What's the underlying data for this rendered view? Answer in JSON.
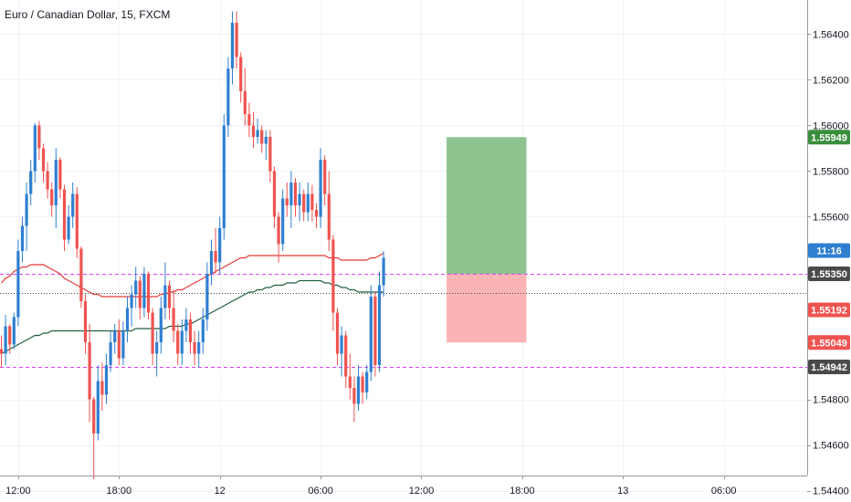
{
  "chart_data": {
    "type": "candlestick",
    "title": "Euro / Canadian Dollar, 15, FXCM",
    "colors": {
      "up": "#2f7fd1",
      "down": "#ef5350",
      "ma_red": "#e53935",
      "ma_green": "#1e5f3a",
      "dashed": "#e040fb",
      "tp_zone": "#8cc38f",
      "sl_zone": "#fbb4b4",
      "badge_blue": "#2f7fd1",
      "badge_green": "#388e3c",
      "badge_red": "#ef5350",
      "badge_gray": "#4a4a4a"
    },
    "ylim": [
      1.5435,
      1.5655
    ],
    "y_ticks": [
      "1.56400",
      "1.56200",
      "1.56000",
      "1.55800",
      "1.55600",
      "1.54800",
      "1.54600",
      "1.54400"
    ],
    "x_ticks": [
      {
        "label": "12:00",
        "slot": 4
      },
      {
        "label": "18:00",
        "slot": 28
      },
      {
        "label": "12",
        "slot": 52
      },
      {
        "label": "06:00",
        "slot": 76
      },
      {
        "label": "12:00",
        "slot": 100
      },
      {
        "label": "18:00",
        "slot": 124
      },
      {
        "label": "13",
        "slot": 148
      },
      {
        "label": "06:00",
        "slot": 172
      }
    ],
    "price_badges": [
      {
        "text": "1.55949",
        "value": 1.55949,
        "color": "badge_green"
      },
      {
        "text": "11:16",
        "value": 1.55452,
        "color": "badge_blue"
      },
      {
        "text": "1.55350",
        "value": 1.5535,
        "color": "badge_gray"
      },
      {
        "text": "1.55192",
        "value": 1.55192,
        "color": "badge_red"
      },
      {
        "text": "1.55049",
        "value": 1.55049,
        "color": "badge_red"
      },
      {
        "text": "1.54942",
        "value": 1.54942,
        "color": "badge_gray"
      }
    ],
    "horizontal_lines": [
      {
        "value": 1.5535,
        "style": "dashed",
        "color": "dashed"
      },
      {
        "value": 1.54942,
        "style": "dashed",
        "color": "dashed"
      },
      {
        "value": 1.55266,
        "style": "dotted",
        "color": "badge_gray"
      }
    ],
    "position": {
      "entry": 1.5535,
      "target": 1.55949,
      "stop": 1.55049,
      "start_slot": 106,
      "end_slot": 125
    },
    "candles": [
      [
        1.5502,
        1.5508,
        1.5494,
        1.55
      ],
      [
        1.55,
        1.5517,
        1.5495,
        1.5512
      ],
      [
        1.5512,
        1.5513,
        1.55,
        1.5504
      ],
      [
        1.5504,
        1.5518,
        1.5502,
        1.5516
      ],
      [
        1.5516,
        1.555,
        1.5512,
        1.5545
      ],
      [
        1.5545,
        1.556,
        1.554,
        1.5556
      ],
      [
        1.5556,
        1.5575,
        1.5545,
        1.557
      ],
      [
        1.557,
        1.5585,
        1.5565,
        1.558
      ],
      [
        1.558,
        1.5601,
        1.5575,
        1.56
      ],
      [
        1.56,
        1.5602,
        1.5585,
        1.559
      ],
      [
        1.559,
        1.5592,
        1.5575,
        1.558
      ],
      [
        1.558,
        1.5584,
        1.5568,
        1.5572
      ],
      [
        1.5572,
        1.5575,
        1.556,
        1.5565
      ],
      [
        1.5565,
        1.559,
        1.5555,
        1.5585
      ],
      [
        1.5585,
        1.5586,
        1.5568,
        1.5572
      ],
      [
        1.5572,
        1.5574,
        1.5545,
        1.555
      ],
      [
        1.555,
        1.5565,
        1.5548,
        1.556
      ],
      [
        1.556,
        1.5575,
        1.5555,
        1.557
      ],
      [
        1.557,
        1.5573,
        1.5542,
        1.5546
      ],
      [
        1.5546,
        1.5547,
        1.552,
        1.5523
      ],
      [
        1.5523,
        1.5526,
        1.55,
        1.5505
      ],
      [
        1.5505,
        1.5513,
        1.547,
        1.548
      ],
      [
        1.548,
        1.5481,
        1.5445,
        1.5465
      ],
      [
        1.5465,
        1.5495,
        1.5462,
        1.5488
      ],
      [
        1.5488,
        1.5496,
        1.5475,
        1.5482
      ],
      [
        1.5482,
        1.55,
        1.5478,
        1.5495
      ],
      [
        1.5495,
        1.551,
        1.5492,
        1.5505
      ],
      [
        1.5505,
        1.5513,
        1.55,
        1.551
      ],
      [
        1.551,
        1.5515,
        1.5495,
        1.5498
      ],
      [
        1.5498,
        1.5514,
        1.5495,
        1.551
      ],
      [
        1.551,
        1.5525,
        1.5505,
        1.552
      ],
      [
        1.552,
        1.553,
        1.5512,
        1.5526
      ],
      [
        1.5526,
        1.5538,
        1.552,
        1.5532
      ],
      [
        1.5532,
        1.5534,
        1.5515,
        1.552
      ],
      [
        1.552,
        1.5538,
        1.5516,
        1.5535
      ],
      [
        1.5535,
        1.5536,
        1.5515,
        1.5518
      ],
      [
        1.5518,
        1.552,
        1.5495,
        1.55
      ],
      [
        1.55,
        1.551,
        1.549,
        1.5505
      ],
      [
        1.5505,
        1.5525,
        1.55,
        1.552
      ],
      [
        1.552,
        1.554,
        1.5515,
        1.553
      ],
      [
        1.553,
        1.5532,
        1.5515,
        1.552
      ],
      [
        1.552,
        1.5528,
        1.5505,
        1.551
      ],
      [
        1.551,
        1.5513,
        1.5495,
        1.55
      ],
      [
        1.55,
        1.5515,
        1.5495,
        1.551
      ],
      [
        1.551,
        1.552,
        1.5505,
        1.5515
      ],
      [
        1.5515,
        1.5518,
        1.55,
        1.5505
      ],
      [
        1.5505,
        1.551,
        1.5495,
        1.55
      ],
      [
        1.55,
        1.551,
        1.5494,
        1.5505
      ],
      [
        1.5505,
        1.552,
        1.55,
        1.5515
      ],
      [
        1.5515,
        1.554,
        1.551,
        1.5535
      ],
      [
        1.5535,
        1.555,
        1.553,
        1.5545
      ],
      [
        1.5545,
        1.5555,
        1.5535,
        1.554
      ],
      [
        1.554,
        1.556,
        1.5535,
        1.5555
      ],
      [
        1.5555,
        1.5605,
        1.555,
        1.56
      ],
      [
        1.56,
        1.563,
        1.5595,
        1.5625
      ],
      [
        1.5625,
        1.565,
        1.5618,
        1.5645
      ],
      [
        1.5645,
        1.565,
        1.5625,
        1.563
      ],
      [
        1.563,
        1.5632,
        1.561,
        1.5615
      ],
      [
        1.5615,
        1.5625,
        1.56,
        1.5605
      ],
      [
        1.5605,
        1.561,
        1.5595,
        1.56
      ],
      [
        1.56,
        1.5606,
        1.559,
        1.5595
      ],
      [
        1.5595,
        1.5603,
        1.5592,
        1.5598
      ],
      [
        1.5598,
        1.56,
        1.5588,
        1.5592
      ],
      [
        1.5592,
        1.5598,
        1.5585,
        1.5595
      ],
      [
        1.5595,
        1.5598,
        1.5575,
        1.558
      ],
      [
        1.558,
        1.5582,
        1.5555,
        1.556
      ],
      [
        1.556,
        1.5562,
        1.554,
        1.5548
      ],
      [
        1.5548,
        1.5572,
        1.5545,
        1.5568
      ],
      [
        1.5568,
        1.5575,
        1.556,
        1.5565
      ],
      [
        1.5565,
        1.558,
        1.5555,
        1.5575
      ],
      [
        1.5575,
        1.5577,
        1.556,
        1.5565
      ],
      [
        1.5565,
        1.5575,
        1.5558,
        1.557
      ],
      [
        1.557,
        1.5572,
        1.5558,
        1.5562
      ],
      [
        1.5562,
        1.5575,
        1.5558,
        1.557
      ],
      [
        1.557,
        1.5574,
        1.5558,
        1.5563
      ],
      [
        1.5563,
        1.5566,
        1.5555,
        1.556
      ],
      [
        1.556,
        1.559,
        1.5555,
        1.5585
      ],
      [
        1.5585,
        1.5587,
        1.5565,
        1.557
      ],
      [
        1.557,
        1.558,
        1.5545,
        1.555
      ],
      [
        1.555,
        1.5552,
        1.551,
        1.5518
      ],
      [
        1.5518,
        1.552,
        1.5495,
        1.55
      ],
      [
        1.55,
        1.5512,
        1.549,
        1.5508
      ],
      [
        1.5508,
        1.551,
        1.5485,
        1.549
      ],
      [
        1.549,
        1.55,
        1.548,
        1.5485
      ],
      [
        1.5485,
        1.549,
        1.547,
        1.5478
      ],
      [
        1.5478,
        1.5495,
        1.5475,
        1.549
      ],
      [
        1.549,
        1.5492,
        1.5478,
        1.5483
      ],
      [
        1.5483,
        1.5495,
        1.548,
        1.5492
      ],
      [
        1.5492,
        1.553,
        1.5488,
        1.5525
      ],
      [
        1.5525,
        1.5527,
        1.549,
        1.5495
      ],
      [
        1.5495,
        1.5536,
        1.5492,
        1.553
      ],
      [
        1.553,
        1.5545,
        1.5525,
        1.5542
      ]
    ],
    "ma_red": [
      1.5531,
      1.5533,
      1.5534,
      1.5536,
      1.5537,
      1.5538,
      1.5538,
      1.5539,
      1.5539,
      1.5539,
      1.5539,
      1.5538,
      1.5537,
      1.5536,
      1.5535,
      1.5533,
      1.5532,
      1.5531,
      1.553,
      1.5529,
      1.5528,
      1.5527,
      1.5526,
      1.5526,
      1.5525,
      1.5525,
      1.5525,
      1.5525,
      1.5525,
      1.5525,
      1.5525,
      1.5525,
      1.5525,
      1.5525,
      1.5525,
      1.5525,
      1.5525,
      1.5525,
      1.5526,
      1.5526,
      1.5527,
      1.5527,
      1.5528,
      1.5528,
      1.5529,
      1.553,
      1.5531,
      1.5532,
      1.5533,
      1.5534,
      1.5535,
      1.5536,
      1.5537,
      1.5538,
      1.5539,
      1.554,
      1.5541,
      1.5542,
      1.5542,
      1.5543,
      1.5543,
      1.5543,
      1.5543,
      1.5543,
      1.5543,
      1.5543,
      1.5543,
      1.5543,
      1.5543,
      1.5543,
      1.5543,
      1.5543,
      1.5543,
      1.5543,
      1.5543,
      1.5543,
      1.5543,
      1.5543,
      1.5542,
      1.5542,
      1.5542,
      1.5541,
      1.5541,
      1.5541,
      1.5541,
      1.5541,
      1.5541,
      1.5541,
      1.5542,
      1.5542,
      1.5543,
      1.5544
    ],
    "ma_green": [
      1.55,
      1.5501,
      1.5502,
      1.5503,
      1.5504,
      1.5505,
      1.5506,
      1.5507,
      1.5508,
      1.5508,
      1.5509,
      1.5509,
      1.551,
      1.551,
      1.551,
      1.551,
      1.551,
      1.551,
      1.551,
      1.551,
      1.551,
      1.551,
      1.551,
      1.551,
      1.551,
      1.551,
      1.551,
      1.551,
      1.551,
      1.551,
      1.551,
      1.551,
      1.5511,
      1.5511,
      1.5511,
      1.5511,
      1.5511,
      1.5511,
      1.5511,
      1.5511,
      1.5512,
      1.5512,
      1.5512,
      1.5512,
      1.5513,
      1.5513,
      1.5514,
      1.5515,
      1.5516,
      1.5517,
      1.5518,
      1.5519,
      1.552,
      1.5521,
      1.5522,
      1.5523,
      1.5524,
      1.5525,
      1.5526,
      1.5527,
      1.5527,
      1.5528,
      1.5528,
      1.5529,
      1.5529,
      1.553,
      1.553,
      1.553,
      1.5531,
      1.5531,
      1.5531,
      1.5532,
      1.5532,
      1.5532,
      1.5532,
      1.5532,
      1.5532,
      1.5531,
      1.5531,
      1.553,
      1.553,
      1.5529,
      1.5529,
      1.5528,
      1.5528,
      1.5527,
      1.5527,
      1.5527,
      1.5527,
      1.5527,
      1.5527,
      1.5527
    ]
  }
}
